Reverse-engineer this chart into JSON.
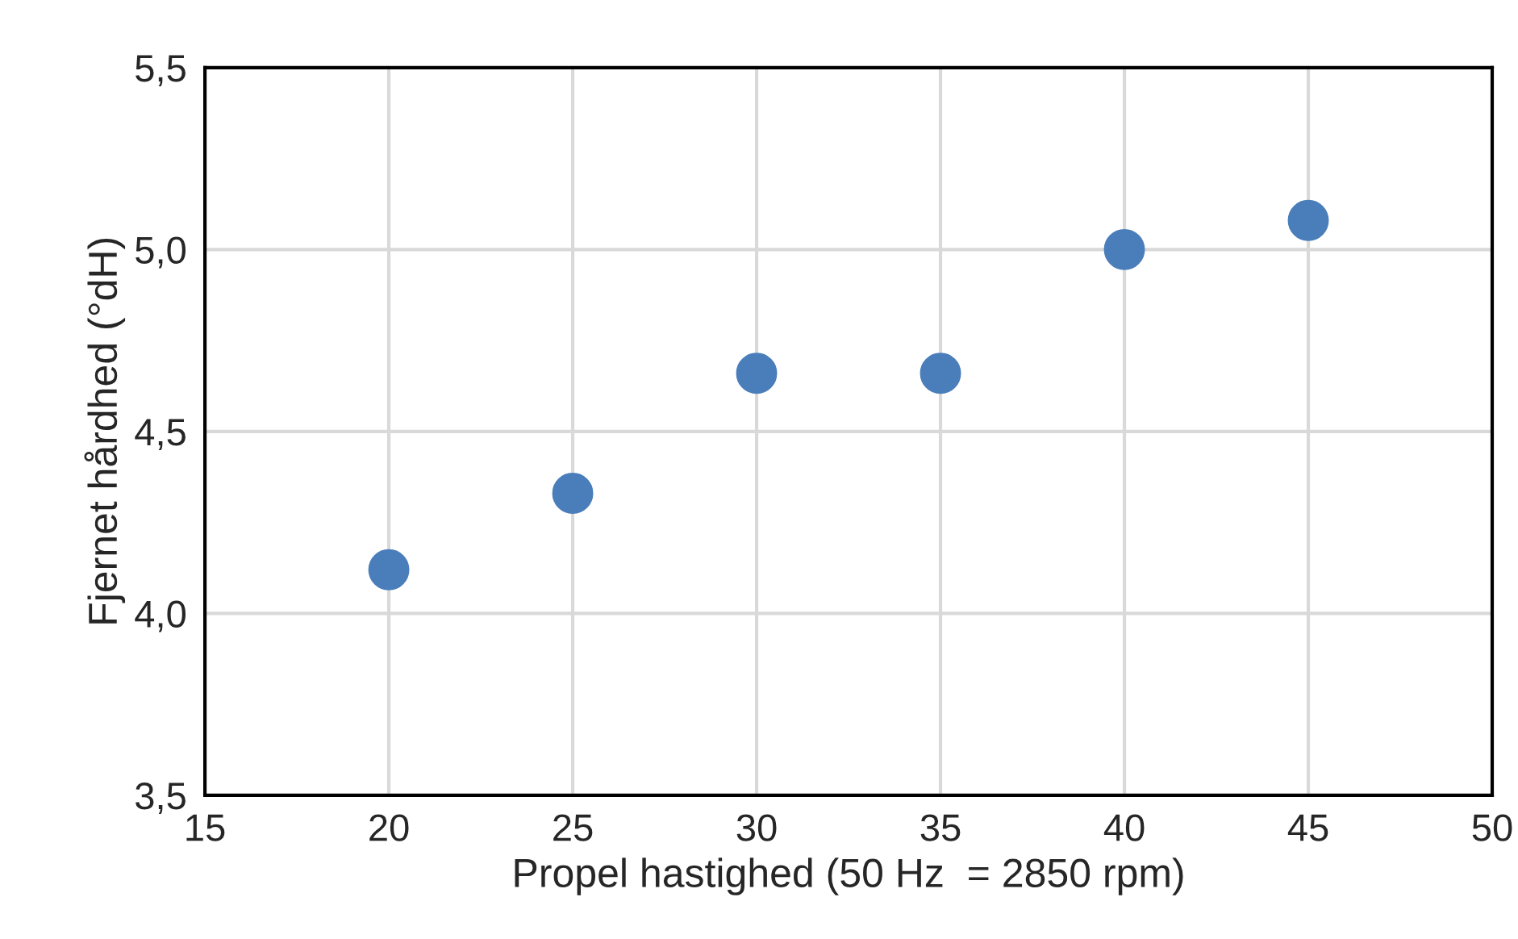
{
  "chart_data": {
    "type": "scatter",
    "xlabel": "Propel hastighed (50 Hz  = 2850 rpm)",
    "ylabel": "Fjernet hårdhed (°dH)",
    "x": [
      20,
      25,
      30,
      35,
      40,
      45
    ],
    "series": [
      {
        "color": "#4a7ebb",
        "values": [
          4.12,
          4.33,
          4.66,
          4.66,
          5.0,
          5.08
        ]
      }
    ],
    "xlim": [
      15,
      50
    ],
    "xticks": [
      15,
      20,
      25,
      30,
      35,
      40,
      45,
      50
    ],
    "ylim": [
      3.5,
      5.5
    ],
    "yticks": [
      {
        "value": 3.5,
        "label": "3,5"
      },
      {
        "value": 4.0,
        "label": "4,0"
      },
      {
        "value": 4.5,
        "label": "4,5"
      },
      {
        "value": 5.0,
        "label": "5,0"
      },
      {
        "value": 5.5,
        "label": "5,5"
      }
    ],
    "grid": true,
    "marker": "circle"
  }
}
